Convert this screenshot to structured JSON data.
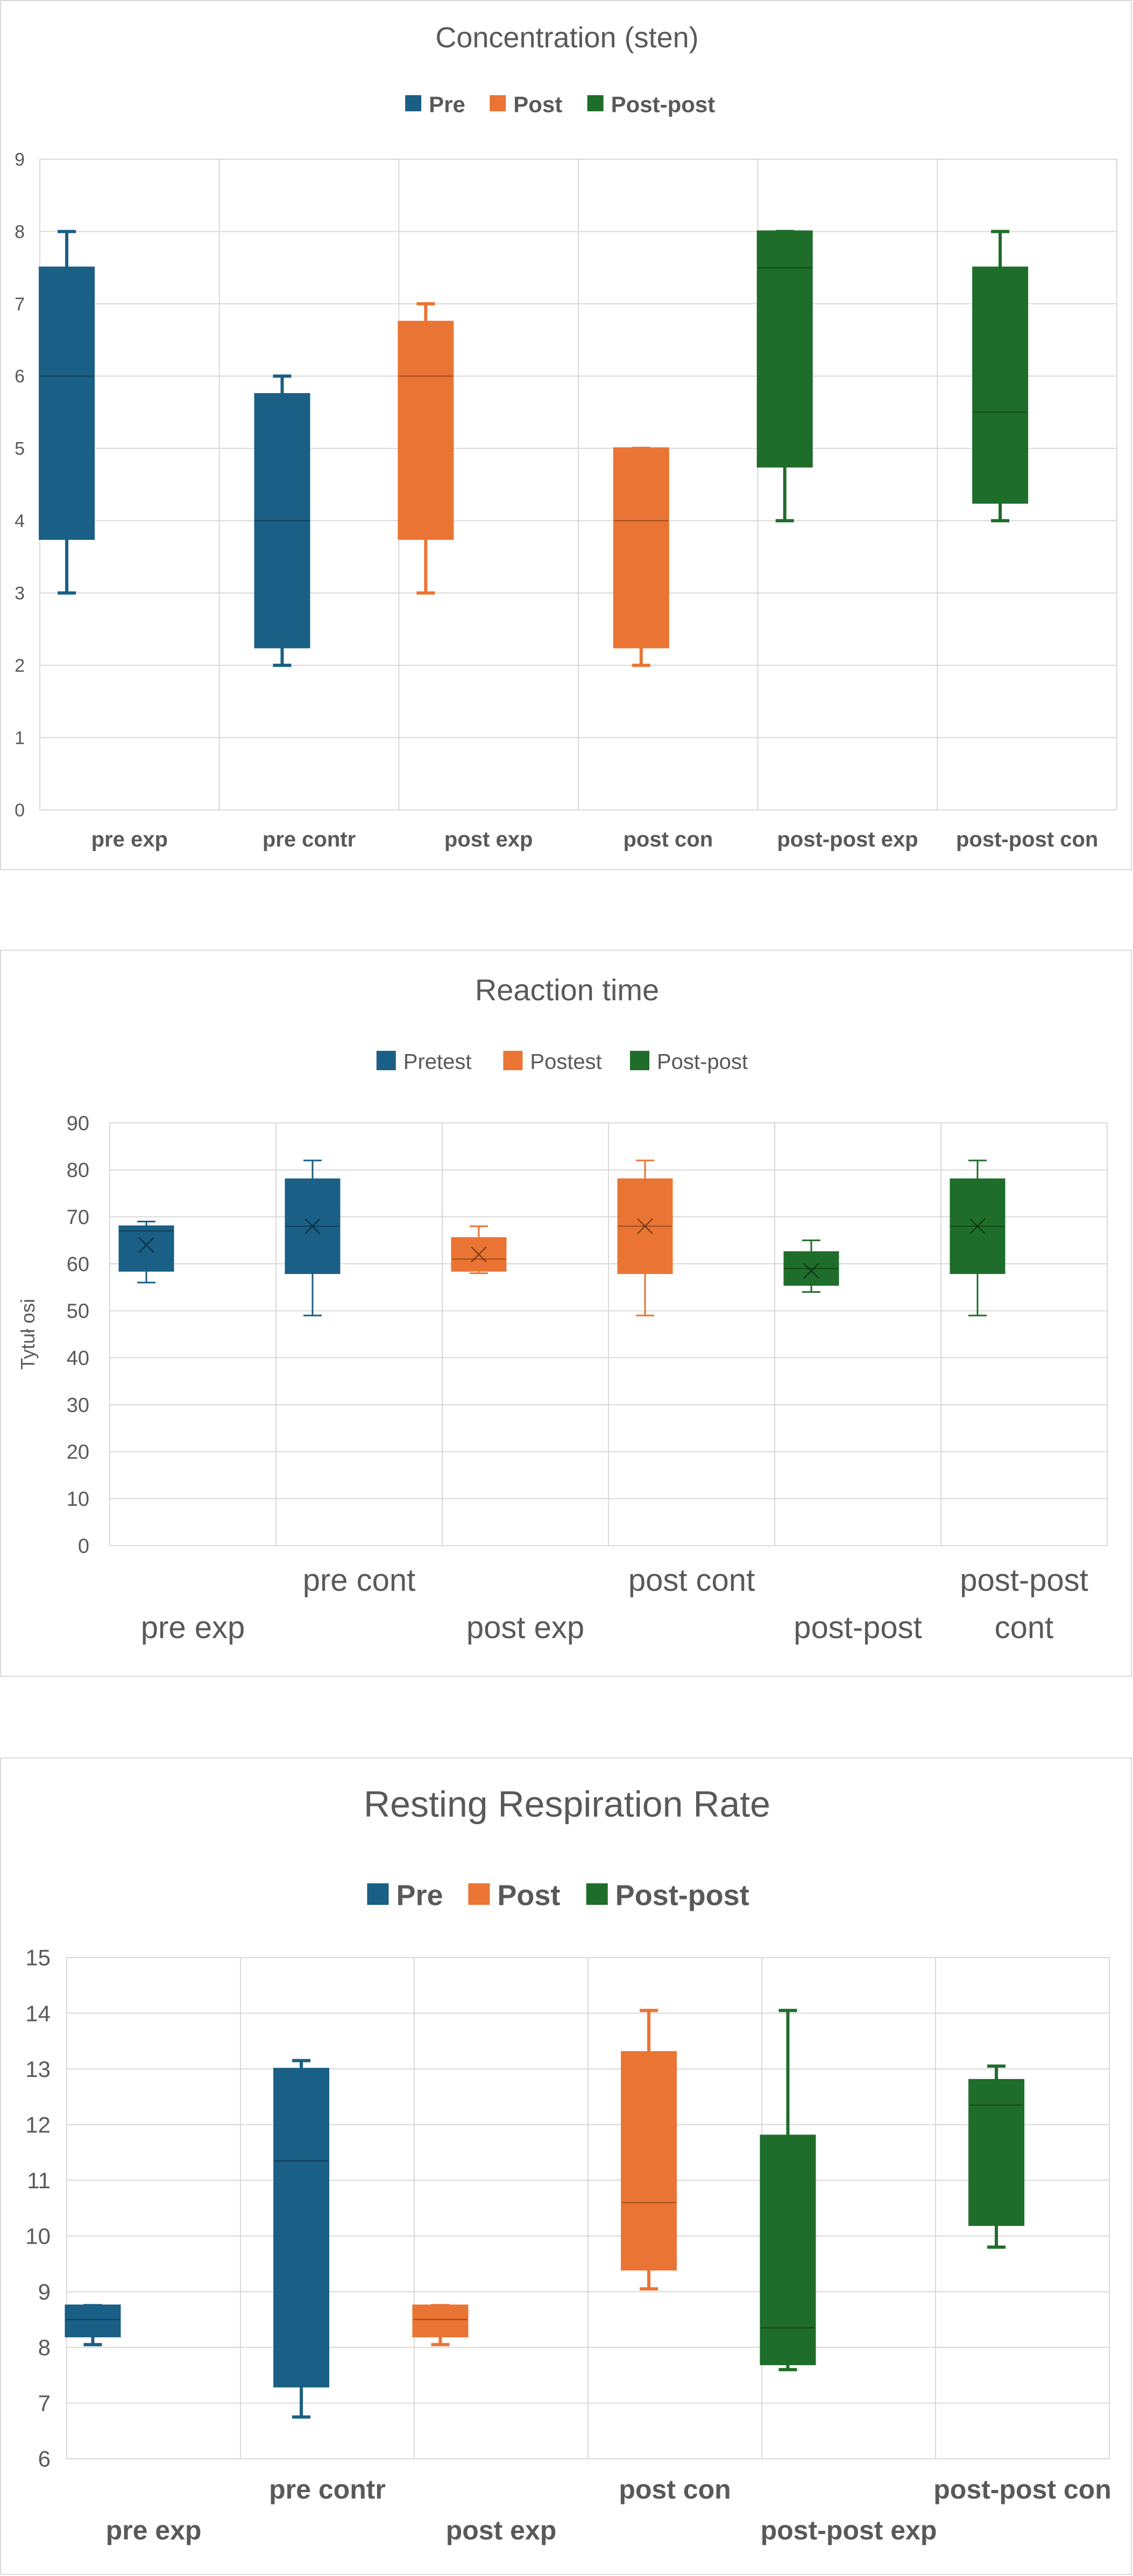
{
  "chart_data": [
    {
      "type": "box",
      "title": "Concentration (sten)",
      "legend": {
        "placement": "top",
        "entries": [
          {
            "name": "Pre",
            "color": "#1a5f85"
          },
          {
            "name": "Post",
            "color": "#ea7433"
          },
          {
            "name": "Post-post",
            "color": "#1f6d2a"
          }
        ]
      },
      "ylim": [
        0,
        9
      ],
      "yticks": [
        "0",
        "1",
        "2",
        "3",
        "4",
        "5",
        "6",
        "7",
        "8",
        "9"
      ],
      "grid": true,
      "categories": [
        "pre exp",
        "pre contr",
        "post exp",
        "post con",
        "post-post exp",
        "post-post con"
      ],
      "boxes": [
        {
          "series": 0,
          "min": 3,
          "q1": 3.75,
          "median": 6,
          "q3": 7.5,
          "max": 8
        },
        {
          "series": 0,
          "min": 2,
          "q1": 2.25,
          "median": 4,
          "q3": 5.75,
          "max": 6
        },
        {
          "series": 1,
          "min": 3,
          "q1": 3.75,
          "median": 6,
          "q3": 6.75,
          "max": 7
        },
        {
          "series": 1,
          "min": 2,
          "q1": 2.25,
          "median": 4,
          "q3": 5,
          "max": 5
        },
        {
          "series": 2,
          "min": 4,
          "q1": 4.75,
          "median": 7.5,
          "q3": 8,
          "max": 8
        },
        {
          "series": 2,
          "min": 4,
          "q1": 4.25,
          "median": 5.5,
          "q3": 7.5,
          "max": 8
        }
      ]
    },
    {
      "type": "box",
      "title": "Reaction time",
      "ylabel": "Tytuł osi",
      "legend": {
        "placement": "top",
        "entries": [
          {
            "name": "Pretest",
            "color": "#1a5f85"
          },
          {
            "name": "Postest",
            "color": "#ea7433"
          },
          {
            "name": "Post-post",
            "color": "#1f6d2a"
          }
        ]
      },
      "ylim": [
        0,
        90
      ],
      "yticks": [
        "0",
        "10",
        "20",
        "30",
        "40",
        "50",
        "60",
        "70",
        "80",
        "90"
      ],
      "grid": true,
      "categories": [
        "pre exp",
        "pre cont",
        "post exp",
        "post cont",
        "post-post",
        "post-post cont"
      ],
      "boxes": [
        {
          "series": 0,
          "min": 56,
          "q1": 58.5,
          "median": 67,
          "q3": 68,
          "max": 69,
          "mean": 64
        },
        {
          "series": 0,
          "min": 49,
          "q1": 58,
          "median": 68,
          "q3": 78,
          "max": 82,
          "mean": 68
        },
        {
          "series": 1,
          "min": 58,
          "q1": 58.5,
          "median": 61,
          "q3": 65.5,
          "max": 68,
          "mean": 62
        },
        {
          "series": 1,
          "min": 49,
          "q1": 58,
          "median": 68,
          "q3": 78,
          "max": 82,
          "mean": 68
        },
        {
          "series": 2,
          "min": 54,
          "q1": 55.5,
          "median": 59,
          "q3": 62.5,
          "max": 65,
          "mean": 58.5
        },
        {
          "series": 2,
          "min": 49,
          "q1": 58,
          "median": 68,
          "q3": 78,
          "max": 82,
          "mean": 68
        }
      ]
    },
    {
      "type": "box",
      "title": "Resting Respiration Rate",
      "legend": {
        "placement": "top",
        "entries": [
          {
            "name": "Pre",
            "color": "#1a5f85"
          },
          {
            "name": "Post",
            "color": "#ea7433"
          },
          {
            "name": "Post-post",
            "color": "#1f6d2a"
          }
        ]
      },
      "ylim": [
        6,
        15
      ],
      "yticks": [
        "6",
        "7",
        "8",
        "9",
        "10",
        "11",
        "12",
        "13",
        "14",
        "15"
      ],
      "grid": true,
      "categories": [
        "pre exp",
        "pre contr",
        "post exp",
        "post con",
        "post-post exp",
        "post-post con"
      ],
      "boxes": [
        {
          "series": 0,
          "min": 8.05,
          "q1": 8.2,
          "median": 8.5,
          "q3": 8.75,
          "max": 8.75
        },
        {
          "series": 0,
          "min": 6.75,
          "q1": 7.3,
          "median": 11.35,
          "q3": 13,
          "max": 13.15
        },
        {
          "series": 1,
          "min": 8.05,
          "q1": 8.2,
          "median": 8.5,
          "q3": 8.75,
          "max": 8.75
        },
        {
          "series": 1,
          "min": 9.05,
          "q1": 9.4,
          "median": 10.6,
          "q3": 13.3,
          "max": 14.05
        },
        {
          "series": 2,
          "min": 7.6,
          "q1": 7.7,
          "median": 8.35,
          "q3": 11.8,
          "max": 14.05
        },
        {
          "series": 2,
          "min": 9.8,
          "q1": 10.2,
          "median": 12.35,
          "q3": 12.8,
          "max": 13.05
        }
      ]
    }
  ]
}
